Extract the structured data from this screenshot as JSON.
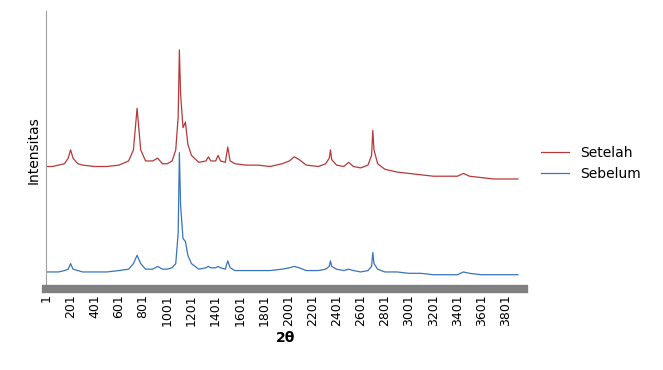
{
  "chart_data": {
    "type": "line",
    "x_label": "2θ",
    "y_label": "Intensitas",
    "x": [
      1,
      51,
      101,
      151,
      181,
      201,
      221,
      261,
      301,
      401,
      501,
      601,
      681,
      721,
      751,
      781,
      821,
      881,
      921,
      961,
      1001,
      1041,
      1071,
      1091,
      1101,
      1111,
      1131,
      1151,
      1171,
      1201,
      1261,
      1321,
      1341,
      1361,
      1401,
      1421,
      1441,
      1481,
      1501,
      1521,
      1561,
      1651,
      1751,
      1851,
      1951,
      2011,
      2051,
      2091,
      2151,
      2251,
      2311,
      2341,
      2351,
      2361,
      2401,
      2461,
      2501,
      2541,
      2601,
      2661,
      2691,
      2701,
      2711,
      2741,
      2801,
      2901,
      3001,
      3101,
      3201,
      3301,
      3401,
      3451,
      3501,
      3601,
      3701,
      3801,
      3901
    ],
    "series": [
      {
        "name": "Setelah",
        "color": "#b5393a",
        "values": [
          44,
          44,
          44.5,
          45,
          47,
          50,
          47,
          45,
          44.5,
          44,
          44,
          44.5,
          46,
          50,
          65,
          50,
          46,
          46,
          47,
          45,
          45,
          46,
          50,
          62,
          86,
          70,
          58,
          60,
          52,
          48,
          45.5,
          46,
          47.5,
          46,
          46,
          48,
          46,
          45.5,
          51,
          46,
          45,
          44.5,
          44.5,
          44,
          45,
          46,
          47.5,
          46.5,
          44.5,
          44,
          45,
          47,
          50,
          46.5,
          44.5,
          44,
          45.5,
          44,
          43.5,
          44.5,
          48,
          57,
          50,
          45,
          43,
          42,
          41.5,
          41,
          40.5,
          40.5,
          40.5,
          41.5,
          40.5,
          40,
          39.5,
          39.5,
          39.5
        ]
      },
      {
        "name": "Sebelum",
        "color": "#3a74b8",
        "values": [
          6,
          6,
          6,
          6.5,
          7,
          9,
          7,
          6.5,
          6,
          6,
          6,
          6.5,
          7,
          9,
          12,
          9,
          7,
          7,
          8,
          7,
          7,
          7.5,
          9,
          20,
          49,
          30,
          18,
          17,
          12,
          9,
          7,
          7.5,
          8,
          7.5,
          7.5,
          8,
          7.5,
          7,
          10,
          7.5,
          6.5,
          6.5,
          6.5,
          6.5,
          7,
          7.5,
          8,
          7.5,
          6.5,
          6.5,
          7,
          8,
          10,
          8,
          7,
          6.5,
          7,
          6.5,
          6,
          6.5,
          8,
          13,
          9,
          7,
          6,
          6,
          5.5,
          5.5,
          5,
          5,
          5,
          6,
          5.5,
          5,
          5,
          5,
          5
        ]
      }
    ],
    "xlim": [
      1,
      3950
    ],
    "xticks": [
      1,
      201,
      401,
      601,
      801,
      1001,
      1201,
      1401,
      1601,
      1801,
      2001,
      2201,
      2401,
      2601,
      2801,
      3001,
      3201,
      3401,
      3601,
      3801
    ],
    "ylim": [
      0,
      100
    ],
    "yticks": [],
    "tick_labels": "x",
    "legend": "right"
  }
}
